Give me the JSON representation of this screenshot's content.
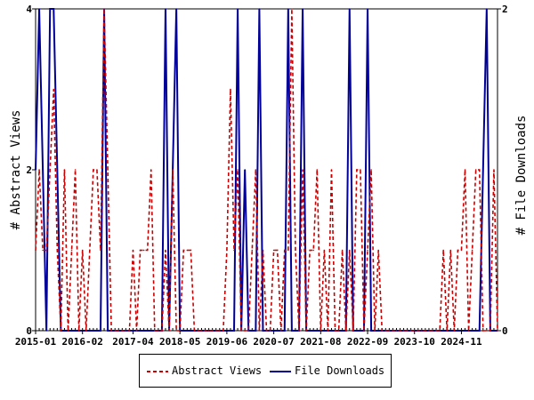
{
  "chart_data": {
    "type": "line",
    "title": "",
    "xlabel": "",
    "ylabel": "# Abstract Views",
    "y2label": "# File Downloads",
    "ylim": [
      0,
      4
    ],
    "y2lim": [
      0,
      2
    ],
    "yticks": [
      0,
      2,
      4
    ],
    "y2ticks": [
      0,
      2
    ],
    "x_start": "2015-01",
    "x_end": "2025-09",
    "xtick_labels": [
      "2015-01",
      "2016-02",
      "2017-04",
      "2018-05",
      "2019-06",
      "2020-07",
      "2021-08",
      "2022-09",
      "2023-10",
      "2024-11"
    ],
    "legend_position": "bottom",
    "grid": false,
    "colors": {
      "abstract_views": "#cc0000",
      "file_downloads": "#000099"
    },
    "series": [
      {
        "name": "Abstract Views",
        "axis": "left",
        "style": "dashed",
        "x": [
          "2015-01",
          "2015-02",
          "2015-03",
          "2015-04",
          "2015-05",
          "2015-06",
          "2015-07",
          "2015-08",
          "2015-09",
          "2015-10",
          "2015-11",
          "2015-12",
          "2016-01",
          "2016-02",
          "2016-03",
          "2016-04",
          "2016-05",
          "2016-06",
          "2016-07",
          "2016-08",
          "2016-09",
          "2016-10",
          "2016-11",
          "2016-12",
          "2017-01",
          "2017-02",
          "2017-03",
          "2017-04",
          "2017-05",
          "2017-06",
          "2017-07",
          "2017-08",
          "2017-09",
          "2017-10",
          "2017-11",
          "2017-12",
          "2018-01",
          "2018-02",
          "2018-03",
          "2018-04",
          "2018-05",
          "2018-06",
          "2018-07",
          "2018-08",
          "2018-09",
          "2018-10",
          "2018-11",
          "2018-12",
          "2019-01",
          "2019-02",
          "2019-03",
          "2019-04",
          "2019-05",
          "2019-06",
          "2019-07",
          "2019-08",
          "2019-09",
          "2019-10",
          "2019-11",
          "2019-12",
          "2020-01",
          "2020-02",
          "2020-03",
          "2020-04",
          "2020-05",
          "2020-06",
          "2020-07",
          "2020-08",
          "2020-09",
          "2020-10",
          "2020-11",
          "2020-12",
          "2021-01",
          "2021-02",
          "2021-03",
          "2021-04",
          "2021-05",
          "2021-06",
          "2021-07",
          "2021-08",
          "2021-09",
          "2021-10",
          "2021-11",
          "2021-12",
          "2022-01",
          "2022-02",
          "2022-03",
          "2022-04",
          "2022-05",
          "2022-06",
          "2022-07",
          "2022-08",
          "2022-09",
          "2022-10",
          "2022-11",
          "2022-12",
          "2023-01",
          "2023-02",
          "2023-03",
          "2023-04",
          "2023-05",
          "2023-06",
          "2023-07",
          "2023-08",
          "2023-09",
          "2023-10",
          "2023-11",
          "2023-12",
          "2024-01",
          "2024-02",
          "2024-03",
          "2024-04",
          "2024-05",
          "2024-06",
          "2024-07",
          "2024-08",
          "2024-09",
          "2024-10",
          "2024-11",
          "2024-12",
          "2025-01",
          "2025-02",
          "2025-03",
          "2025-04",
          "2025-05",
          "2025-06",
          "2025-07",
          "2025-08",
          "2025-09"
        ],
        "values": [
          1,
          2,
          1,
          1,
          2,
          3,
          1,
          0,
          2,
          0,
          1,
          2,
          0,
          1,
          0,
          1,
          2,
          2,
          1,
          4,
          2,
          0,
          0,
          0,
          0,
          0,
          0,
          1,
          0,
          1,
          1,
          1,
          2,
          0,
          0,
          0,
          1,
          0,
          2,
          0,
          0,
          1,
          1,
          1,
          0,
          0,
          0,
          0,
          0,
          0,
          0,
          0,
          0,
          1,
          3,
          1,
          2,
          0,
          0,
          0,
          1,
          2,
          0,
          1,
          0,
          0,
          1,
          1,
          0,
          1,
          1,
          4,
          1,
          0,
          2,
          0,
          1,
          1,
          2,
          0,
          1,
          0,
          2,
          0,
          0,
          1,
          0,
          1,
          0,
          2,
          2,
          0,
          1,
          2,
          0,
          1,
          0,
          0,
          0,
          0,
          0,
          0,
          0,
          0,
          0,
          0,
          0,
          0,
          0,
          0,
          0,
          0,
          0,
          1,
          0,
          1,
          0,
          1,
          1,
          2,
          0,
          1,
          2,
          2,
          0,
          0,
          0,
          2,
          0
        ]
      },
      {
        "name": "File Downloads",
        "axis": "right",
        "style": "solid",
        "x": [
          "2015-01",
          "2015-02",
          "2015-03",
          "2015-04",
          "2015-05",
          "2015-06",
          "2015-07",
          "2015-08",
          "2015-09",
          "2015-10",
          "2015-11",
          "2015-12",
          "2016-01",
          "2016-02",
          "2016-03",
          "2016-04",
          "2016-05",
          "2016-06",
          "2016-07",
          "2016-08",
          "2016-09",
          "2016-10",
          "2016-11",
          "2016-12",
          "2017-01",
          "2017-02",
          "2017-03",
          "2017-04",
          "2017-05",
          "2017-06",
          "2017-07",
          "2017-08",
          "2017-09",
          "2017-10",
          "2017-11",
          "2017-12",
          "2018-01",
          "2018-02",
          "2018-03",
          "2018-04",
          "2018-05",
          "2018-06",
          "2018-07",
          "2018-08",
          "2018-09",
          "2018-10",
          "2018-11",
          "2018-12",
          "2019-01",
          "2019-02",
          "2019-03",
          "2019-04",
          "2019-05",
          "2019-06",
          "2019-07",
          "2019-08",
          "2019-09",
          "2019-10",
          "2019-11",
          "2019-12",
          "2020-01",
          "2020-02",
          "2020-03",
          "2020-04",
          "2020-05",
          "2020-06",
          "2020-07",
          "2020-08",
          "2020-09",
          "2020-10",
          "2020-11",
          "2020-12",
          "2021-01",
          "2021-02",
          "2021-03",
          "2021-04",
          "2021-05",
          "2021-06",
          "2021-07",
          "2021-08",
          "2021-09",
          "2021-10",
          "2021-11",
          "2021-12",
          "2022-01",
          "2022-02",
          "2022-03",
          "2022-04",
          "2022-05",
          "2022-06",
          "2022-07",
          "2022-08",
          "2022-09",
          "2022-10",
          "2022-11",
          "2022-12",
          "2023-01",
          "2023-02",
          "2023-03",
          "2023-04",
          "2023-05",
          "2023-06",
          "2023-07",
          "2023-08",
          "2023-09",
          "2023-10",
          "2023-11",
          "2023-12",
          "2024-01",
          "2024-02",
          "2024-03",
          "2024-04",
          "2024-05",
          "2024-06",
          "2024-07",
          "2024-08",
          "2024-09",
          "2024-10",
          "2024-11",
          "2024-12",
          "2025-01",
          "2025-02",
          "2025-03",
          "2025-04",
          "2025-05",
          "2025-06",
          "2025-07",
          "2025-08",
          "2025-09"
        ],
        "values": [
          1,
          2,
          1,
          0,
          2,
          2,
          1,
          0,
          0,
          0,
          0,
          0,
          0,
          0,
          0,
          0,
          0,
          0,
          0,
          2,
          0,
          0,
          0,
          0,
          0,
          0,
          0,
          0,
          0,
          0,
          0,
          0,
          0,
          0,
          0,
          0,
          2,
          0,
          1,
          2,
          0,
          0,
          0,
          0,
          0,
          0,
          0,
          0,
          0,
          0,
          0,
          0,
          0,
          0,
          0,
          0,
          2,
          0,
          1,
          0,
          0,
          0,
          2,
          0,
          0,
          0,
          0,
          0,
          0,
          0,
          2,
          0,
          0,
          0,
          2,
          0,
          0,
          0,
          0,
          0,
          0,
          0,
          0,
          0,
          0,
          0,
          0,
          2,
          0,
          0,
          0,
          0,
          2,
          0,
          0,
          0,
          0,
          0,
          0,
          0,
          0,
          0,
          0,
          0,
          0,
          0,
          0,
          0,
          0,
          0,
          0,
          0,
          0,
          0,
          0,
          0,
          0,
          0,
          0,
          0,
          0,
          0,
          0,
          0,
          1,
          2,
          0,
          0,
          0
        ]
      }
    ]
  }
}
